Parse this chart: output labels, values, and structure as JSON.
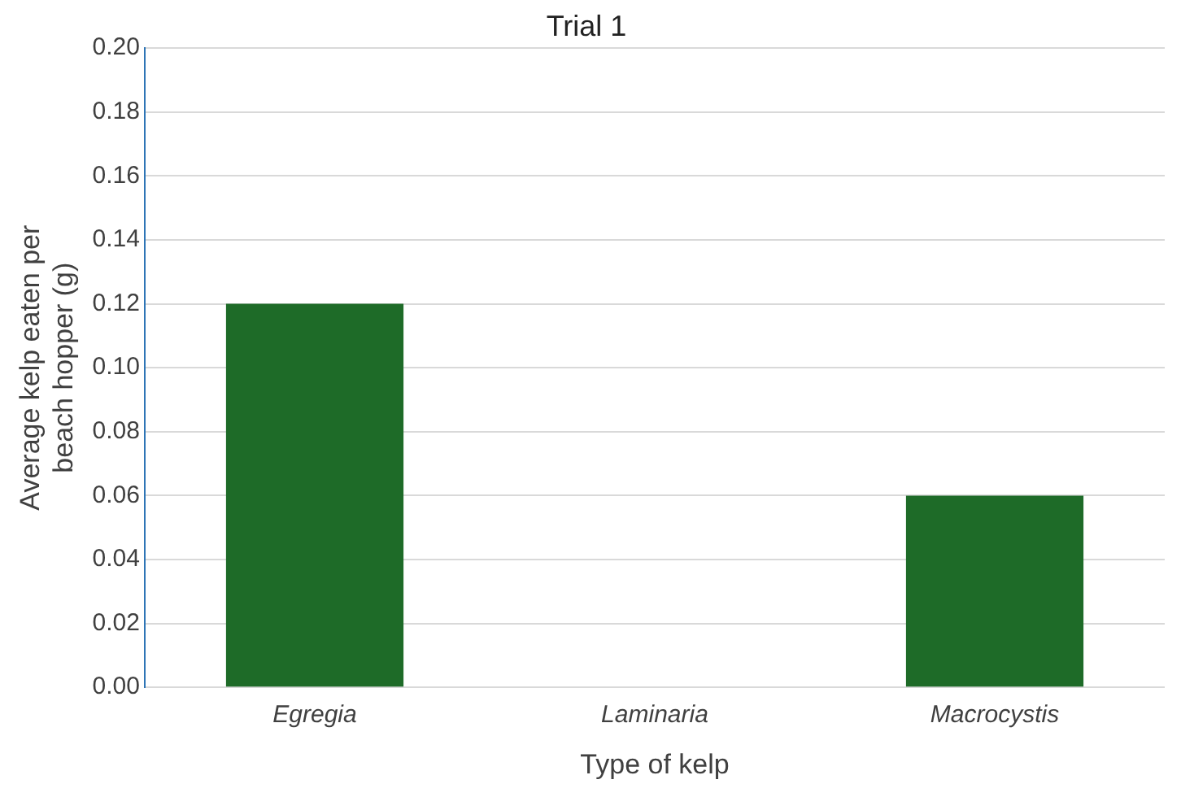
{
  "chart_data": {
    "type": "bar",
    "title": "Trial 1",
    "xlabel": "Type of kelp",
    "ylabel": "Average kelp eaten per beach hopper (g)",
    "categories": [
      "Egregia",
      "Laminaria",
      "Macrocystis"
    ],
    "values": [
      0.12,
      0,
      0.06
    ],
    "color": "#1e6b28",
    "ylim": [
      0,
      0.2
    ],
    "yticks": [
      {
        "value": 0,
        "label": "0.00"
      },
      {
        "value": 0.02,
        "label": "0.02"
      },
      {
        "value": 0.04,
        "label": "0.04"
      },
      {
        "value": 0.06,
        "label": "0.06"
      },
      {
        "value": 0.08,
        "label": "0.08"
      },
      {
        "value": 0.1,
        "label": "0.10"
      },
      {
        "value": 0.12,
        "label": "0.12"
      },
      {
        "value": 0.14,
        "label": "0.14"
      },
      {
        "value": 0.16,
        "label": "0.16"
      },
      {
        "value": 0.18,
        "label": "0.18"
      },
      {
        "value": 0.2,
        "label": "0.20"
      }
    ],
    "grid": "y"
  }
}
